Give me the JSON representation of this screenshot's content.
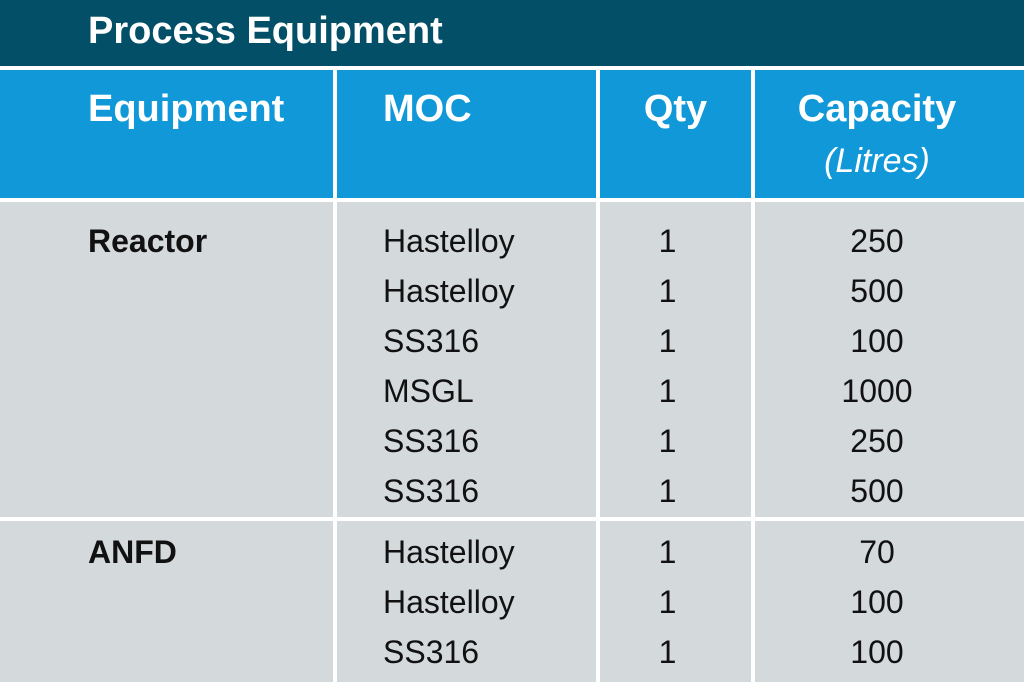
{
  "title": "Process Equipment",
  "columns": {
    "equipment": "Equipment",
    "moc": "MOC",
    "qty": "Qty",
    "capacity": "Capacity",
    "capacity_unit": "(Litres)"
  },
  "groups": [
    {
      "name": "Reactor",
      "rows": [
        {
          "moc": "Hastelloy",
          "qty": "1",
          "capacity": "250"
        },
        {
          "moc": "Hastelloy",
          "qty": "1",
          "capacity": "500"
        },
        {
          "moc": "SS316",
          "qty": "1",
          "capacity": "100"
        },
        {
          "moc": "MSGL",
          "qty": "1",
          "capacity": "1000"
        },
        {
          "moc": "SS316",
          "qty": "1",
          "capacity": "250"
        },
        {
          "moc": "SS316",
          "qty": "1",
          "capacity": "500"
        }
      ]
    },
    {
      "name": "ANFD",
      "rows": [
        {
          "moc": "Hastelloy",
          "qty": "1",
          "capacity": "70"
        },
        {
          "moc": "Hastelloy",
          "qty": "1",
          "capacity": "100"
        },
        {
          "moc": "SS316",
          "qty": "1",
          "capacity": "100"
        }
      ]
    }
  ]
}
